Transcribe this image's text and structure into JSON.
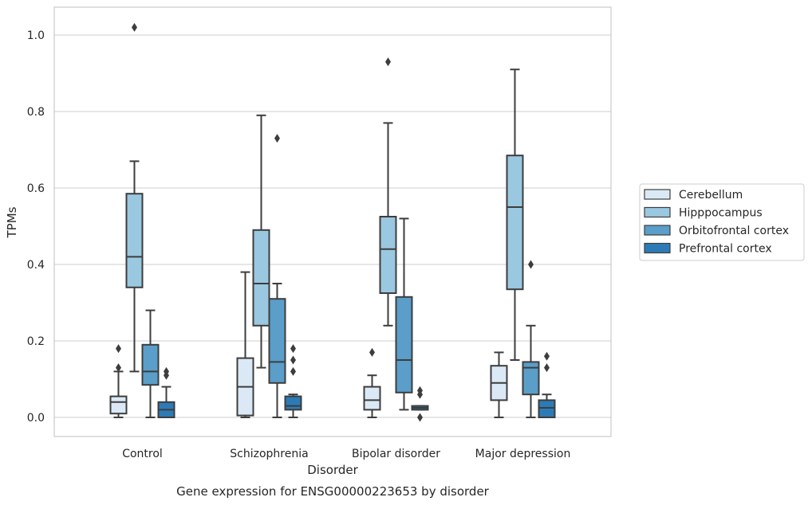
{
  "caption": "Gene expression for ENSG00000223653 by disorder",
  "chart_data": {
    "type": "box",
    "xlabel": "Disorder",
    "ylabel": "TPMs",
    "ylim": [
      -0.05,
      1.07
    ],
    "yticks": [
      0.0,
      0.2,
      0.4,
      0.6,
      0.8,
      1.0
    ],
    "ytick_labels": [
      "0.0",
      "0.2",
      "0.4",
      "0.6",
      "0.8",
      "1.0"
    ],
    "grid": "horizontal",
    "legend_position": "right",
    "categories": [
      "Control",
      "Schizophrenia",
      "Bipolar disorder",
      "Major depression"
    ],
    "series": [
      {
        "name": "Cerebellum",
        "color": "#dbe9f6",
        "boxes": [
          {
            "whisker_low": 0.0,
            "q1": 0.01,
            "median": 0.04,
            "q3": 0.055,
            "whisker_high": 0.12,
            "outliers": [
              0.13,
              0.18
            ]
          },
          {
            "whisker_low": 0.0,
            "q1": 0.005,
            "median": 0.08,
            "q3": 0.155,
            "whisker_high": 0.38,
            "outliers": []
          },
          {
            "whisker_low": 0.0,
            "q1": 0.02,
            "median": 0.045,
            "q3": 0.08,
            "whisker_high": 0.11,
            "outliers": [
              0.17
            ]
          },
          {
            "whisker_low": 0.0,
            "q1": 0.045,
            "median": 0.09,
            "q3": 0.135,
            "whisker_high": 0.17,
            "outliers": []
          }
        ]
      },
      {
        "name": "Hipppocampus",
        "color": "#9ac8e0",
        "boxes": [
          {
            "whisker_low": 0.12,
            "q1": 0.34,
            "median": 0.42,
            "q3": 0.585,
            "whisker_high": 0.67,
            "outliers": [
              1.02
            ]
          },
          {
            "whisker_low": 0.13,
            "q1": 0.24,
            "median": 0.35,
            "q3": 0.49,
            "whisker_high": 0.79,
            "outliers": []
          },
          {
            "whisker_low": 0.24,
            "q1": 0.325,
            "median": 0.44,
            "q3": 0.525,
            "whisker_high": 0.77,
            "outliers": [
              0.93
            ]
          },
          {
            "whisker_low": 0.15,
            "q1": 0.335,
            "median": 0.55,
            "q3": 0.685,
            "whisker_high": 0.91,
            "outliers": []
          }
        ]
      },
      {
        "name": "Orbitofrontal cortex",
        "color": "#5a9ec9",
        "boxes": [
          {
            "whisker_low": 0.0,
            "q1": 0.085,
            "median": 0.12,
            "q3": 0.19,
            "whisker_high": 0.28,
            "outliers": []
          },
          {
            "whisker_low": 0.0,
            "q1": 0.09,
            "median": 0.145,
            "q3": 0.31,
            "whisker_high": 0.35,
            "outliers": [
              0.73
            ]
          },
          {
            "whisker_low": 0.02,
            "q1": 0.065,
            "median": 0.15,
            "q3": 0.315,
            "whisker_high": 0.52,
            "outliers": []
          },
          {
            "whisker_low": 0.0,
            "q1": 0.06,
            "median": 0.13,
            "q3": 0.145,
            "whisker_high": 0.24,
            "outliers": [
              0.4
            ]
          }
        ]
      },
      {
        "name": "Prefrontal cortex",
        "color": "#2c7bb6",
        "boxes": [
          {
            "whisker_low": 0.0,
            "q1": 0.0,
            "median": 0.02,
            "q3": 0.04,
            "whisker_high": 0.08,
            "outliers": [
              0.11,
              0.12
            ]
          },
          {
            "whisker_low": 0.0,
            "q1": 0.02,
            "median": 0.03,
            "q3": 0.055,
            "whisker_high": 0.06,
            "outliers": [
              0.12,
              0.15,
              0.18
            ]
          },
          {
            "whisker_low": 0.02,
            "q1": 0.02,
            "median": 0.025,
            "q3": 0.03,
            "whisker_high": 0.03,
            "outliers": [
              0.0,
              0.06,
              0.07
            ]
          },
          {
            "whisker_low": 0.0,
            "q1": 0.0,
            "median": 0.025,
            "q3": 0.045,
            "whisker_high": 0.06,
            "outliers": [
              0.13,
              0.16
            ]
          }
        ]
      }
    ]
  }
}
